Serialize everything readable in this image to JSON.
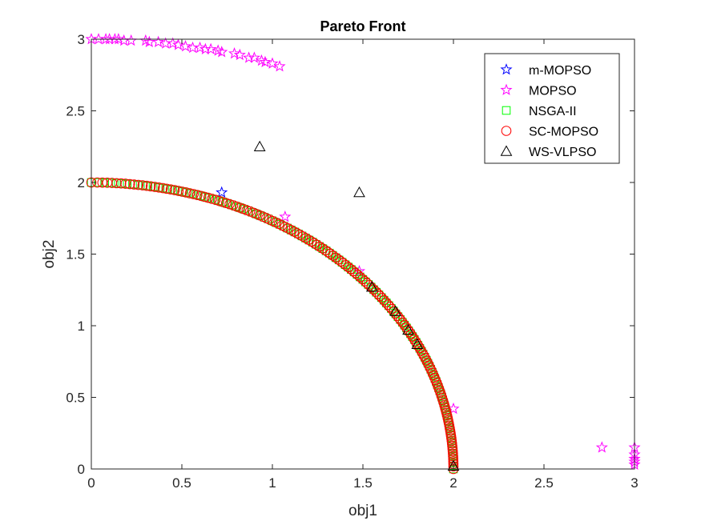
{
  "chart_data": {
    "type": "scatter",
    "title": "Pareto Front",
    "xlabel": "obj1",
    "ylabel": "obj2",
    "xlim": [
      0,
      3
    ],
    "ylim": [
      0,
      3
    ],
    "xticks": [
      "0",
      "0.5",
      "1",
      "1.5",
      "2",
      "2.5",
      "3"
    ],
    "yticks": [
      "0",
      "0.5",
      "1",
      "1.5",
      "2",
      "2.5",
      "3"
    ],
    "grid": false,
    "legend": "top-right",
    "series": [
      {
        "name": "m-MOPSO",
        "marker": "star",
        "color": "#0000ff",
        "points": [
          [
            0.72,
            1.93
          ]
        ]
      },
      {
        "name": "MOPSO",
        "marker": "star",
        "color": "#ff00ff",
        "points": [
          [
            0.0,
            3.0
          ],
          [
            0.04,
            3.0
          ],
          [
            0.08,
            3.0
          ],
          [
            0.1,
            3.0
          ],
          [
            0.13,
            3.0
          ],
          [
            0.15,
            3.0
          ],
          [
            0.18,
            2.99
          ],
          [
            0.22,
            2.99
          ],
          [
            0.3,
            2.99
          ],
          [
            0.32,
            2.98
          ],
          [
            0.37,
            2.98
          ],
          [
            0.41,
            2.97
          ],
          [
            0.45,
            2.97
          ],
          [
            0.48,
            2.96
          ],
          [
            0.52,
            2.95
          ],
          [
            0.56,
            2.94
          ],
          [
            0.6,
            2.94
          ],
          [
            0.63,
            2.93
          ],
          [
            0.66,
            2.93
          ],
          [
            0.7,
            2.92
          ],
          [
            0.72,
            2.91
          ],
          [
            0.79,
            2.9
          ],
          [
            0.82,
            2.89
          ],
          [
            0.87,
            2.87
          ],
          [
            0.9,
            2.87
          ],
          [
            0.94,
            2.85
          ],
          [
            0.96,
            2.84
          ],
          [
            1.0,
            2.83
          ],
          [
            1.04,
            2.81
          ],
          [
            1.07,
            1.76
          ],
          [
            1.48,
            1.38
          ],
          [
            2.0,
            0.42
          ],
          [
            2.82,
            0.15
          ],
          [
            3.0,
            0.15
          ],
          [
            3.0,
            0.1
          ],
          [
            3.0,
            0.07
          ],
          [
            3.0,
            0.05
          ],
          [
            3.0,
            0.03
          ]
        ]
      },
      {
        "name": "NSGA-II",
        "marker": "square",
        "color": "#00ff00",
        "curve": {
          "a": 2,
          "b": 2,
          "n": 130
        }
      },
      {
        "name": "SC-MOPSO",
        "marker": "circle",
        "color": "#ff0000",
        "curve": {
          "a": 2,
          "b": 2,
          "n": 160
        }
      },
      {
        "name": "WS-VLPSO",
        "marker": "triangle",
        "color": "#000000",
        "points": [
          [
            0.93,
            2.25
          ],
          [
            1.48,
            1.93
          ],
          [
            1.55,
            1.27
          ],
          [
            1.68,
            1.1
          ],
          [
            1.75,
            0.97
          ],
          [
            1.8,
            0.87
          ],
          [
            2.0,
            0.02
          ]
        ]
      }
    ]
  }
}
